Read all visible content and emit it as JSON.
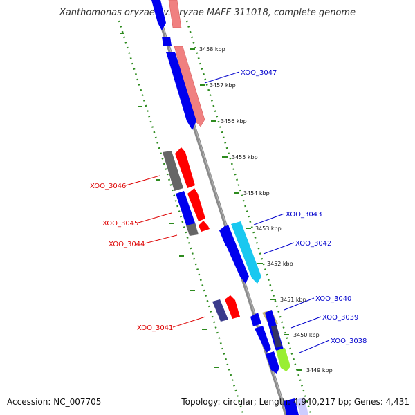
{
  "title": "Xanthomonas oryzae pv. oryzae MAFF 311018, complete genome",
  "footer": {
    "accession": "Accession: NC_007705",
    "summary": "Topology: circular; Length: 4,940,217 bp; Genes: 4,431"
  },
  "colors": {
    "backbone": "#8c8c8c",
    "tick_dots": "#2e8b1f",
    "forward_label": "#0000cc",
    "reverse_label": "#dd0000",
    "blue_gene": "#0000ee",
    "salmon_gene": "#f08080",
    "red_gene": "#ff0000",
    "gray_gene": "#666666",
    "cyan_gene": "#19c8f0",
    "purple_gene": "#3a3a8c",
    "khaki_gene": "#c8b87a",
    "lime_gene": "#99ee33"
  },
  "scale_ticks": [
    {
      "label": "3458 kbp"
    },
    {
      "label": "3457 kbp"
    },
    {
      "label": "3456 kbp"
    },
    {
      "label": "3455 kbp"
    },
    {
      "label": "3454 kbp"
    },
    {
      "label": "3453 kbp"
    },
    {
      "label": "3452 kbp"
    },
    {
      "label": "3451 kbp"
    },
    {
      "label": "3450 kbp"
    },
    {
      "label": "3449 kbp"
    }
  ],
  "gene_labels": {
    "forward": [
      "XOO_3047",
      "XOO_3043",
      "XOO_3042",
      "XOO_3040",
      "XOO_3039",
      "XOO_3038"
    ],
    "reverse": [
      "XOO_3046",
      "XOO_3045",
      "XOO_3044",
      "XOO_3041"
    ]
  }
}
